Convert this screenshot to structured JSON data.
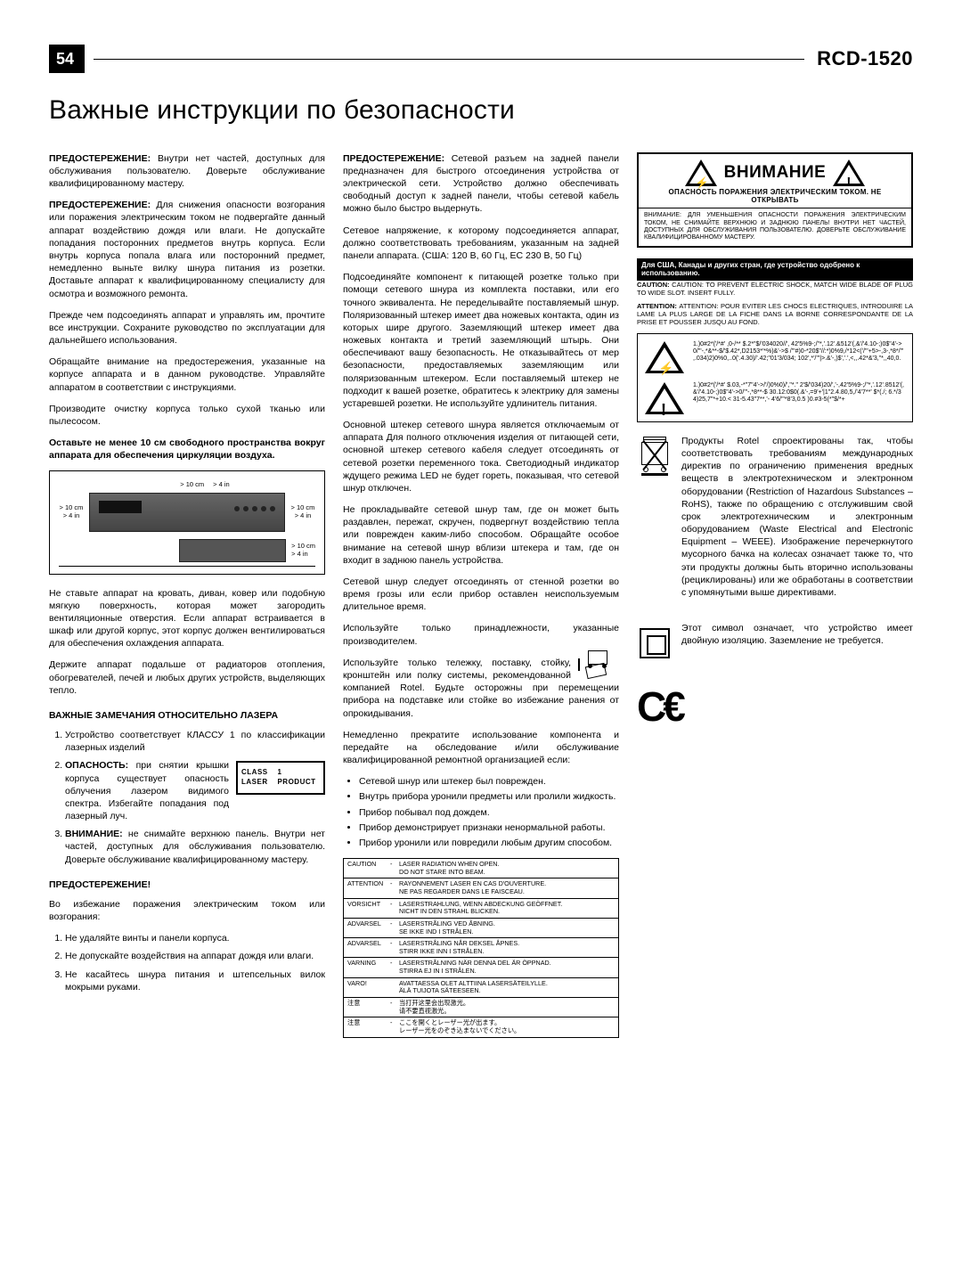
{
  "header": {
    "page": "54",
    "model": "RCD-1520"
  },
  "title": "Важные инструкции по безопасности",
  "col1": {
    "p1_label": "ПРЕДОСТЕРЕЖЕНИЕ:",
    "p1": " Внутри нет частей, доступных для обслуживания пользователю. Доверьте обслуживание квалифицированному мастеру.",
    "p2_label": "ПРЕДОСТЕРЕЖЕНИЕ:",
    "p2": " Для снижения опасности возгорания или поражения электрическим током не подвергайте данный аппарат воздействию дождя или влаги. Не допускайте попадания посторонних предметов внутрь корпуса. Если внутрь корпуса попала влага или посторонний предмет, немедленно выньте вилку шнура питания из розетки. Доставьте аппарат к квалифицированному специалисту для осмотра и возможного ремонта.",
    "p3": "Прежде чем подсоединять аппарат и управлять им, прочтите все инструкции. Сохраните руководство по эксплуатации для дальнейшего использования.",
    "p4": "Обращайте внимание на предостережения, указанные на корпусе аппарата и в данном руководстве. Управляйте аппаратом в соответствии с инструкциями.",
    "p5": "Производите очистку корпуса только сухой тканью или пылесосом.",
    "p6": "Оставьте не менее 10 см свободного пространства вокруг аппарата для обеспечения циркуляции воздуха.",
    "vent": {
      "gt10cm": "> 10 cm",
      "gt4in": "> 4 in"
    },
    "p7": "Не ставьте аппарат на кровать, диван, ковер или подобную мягкую поверхность, которая может загородить вентиляционные отверстия. Если аппарат встраивается в шкаф или другой корпус, этот корпус должен вентилироваться для обеспечения охлаждения аппарата.",
    "p8": "Держите аппарат подальше от радиаторов отопления, обогревателей, печей и любых других устройств, выделяющих тепло.",
    "laser_head": "ВАЖНЫЕ ЗАМЕЧАНИЯ ОТНОСИТЕЛЬНО ЛАЗЕРА",
    "laser1": "Устройство соответствует КЛАССУ 1 по классификации лазерных изделий",
    "laser2_label": "ОПАСНОСТЬ:",
    "laser2": " при снятии крышки корпуса существует опасность облучения лазером видимого спектра. Избегайте попадания под лазерный луч.",
    "laser3_label": "ВНИМАНИЕ:",
    "laser3": " не снимайте верхнюю панель. Внутри нет частей, доступных для обслуживания пользователю. Доверьте обслуживание квалифицированному мастеру.",
    "laser_box": {
      "l1a": "CLASS",
      "l1b": "1",
      "l2a": "LASER",
      "l2b": "PRODUCT"
    },
    "warn_head": "ПРЕДОСТЕРЕЖЕНИЕ!",
    "warn_intro": "Во избежание поражения электрическим током или возгорания:",
    "w1": "Не удаляйте винты и панели корпуса.",
    "w2": "Не допускайте воздействия на аппарат дождя или влаги.",
    "w3": "Не касайтесь шнура питания и штепсельных вилок мокрыми руками."
  },
  "col2": {
    "p1_label": "ПРЕДОСТЕРЕЖЕНИЕ:",
    "p1": " Сетевой разъем на задней панели предназначен для быстрого отсоединения устройства от электрической сети. Устройство должно обеспечивать свободный доступ к задней панели, чтобы сетевой кабель можно было быстро выдернуть.",
    "p2": "Сетевое напряжение, к которому подсоединяется аппарат, должно соответствовать требованиям, указанным на задней панели аппарата. (США: 120 В, 60 Гц, ЕС 230 В, 50 Гц)",
    "p3": "Подсоединяйте компонент к питающей розетке только при помощи сетевого шнура из комплекта поставки, или его точного эквивалента. Не переделывайте поставляемый шнур. Поляризованный штекер имеет два ножевых контакта, один из которых шире другого. Заземляющий штекер имеет два ножевых контакта и третий заземляющий штырь. Они обеспечивают вашу безопасность. Не отказывайтесь от мер безопасности, предоставляемых заземляющим или поляризованным штекером. Если поставляемый штекер не подходит к вашей розетке, обратитесь к электрику для замены устаревшей розетки. Не используйте удлинитель питания.",
    "p4": "Основной штекер сетевого шнура является отключаемым от аппарата Для полного отключения изделия от питающей сети, основной штекер сетевого кабеля следует отсоединять от сетевой розетки переменного тока. Светодиодный индикатор ждущего режима LED не будет гореть, показывая, что сетевой шнур отключен.",
    "p5": "Не прокладывайте сетевой шнур там, где он может быть раздавлен, пережат, скручен, подвергнут воздействию тепла или поврежден каким-либо способом. Обращайте особое внимание на сетевой шнур вблизи штекера и там, где он входит в заднюю панель устройства.",
    "p6": "Сетевой шнур следует отсоединять от стенной розетки во время грозы или если прибор оставлен неиспользуемым длительное время.",
    "p7": "Используйте только принадлежности, указанные производителем.",
    "p8": "Используйте только тележку, поставку, стойку, кронштейн или полку системы, рекомендованной компанией Rotel. Будьте осторожны при перемещении прибора на подставке или стойке во избежание ранения от опрокидывания.",
    "p9": "Немедленно прекратите использование компонента и передайте на обследование и/или обслуживание квалифицированной ремонтной организацией если:",
    "b1": "Сетевой шнур или штекер был поврежден.",
    "b2": "Внутрь прибора уронили предметы или пролили жидкость.",
    "b3": "Прибор побывал под дождем.",
    "b4": "Прибор демонстрирует признаки ненормальной работы.",
    "b5": "Прибор уронили или повредили любым другим способом.",
    "laser_table": [
      {
        "h": "CAUTION",
        "d": "-",
        "t": "LASER RADIATION WHEN OPEN.\nDO NOT STARE INTO BEAM."
      },
      {
        "h": "ATTENTION",
        "d": "-",
        "t": "RAYONNEMENT LASER EN CAS D'OUVERTURE.\nNE PAS REGARDER DANS LE FAISCEAU."
      },
      {
        "h": "VORSICHT",
        "d": "-",
        "t": "LASERSTRAHLUNG, WENN ABDECKUNG GEÖFFNET.\nNICHT IN DEN STRAHL BLICKEN."
      },
      {
        "h": "ADVARSEL",
        "d": "-",
        "t": "LASERSTRÅLING VED ÅBNING.\nSE IKKE IND I STRÅLEN."
      },
      {
        "h": "ADVARSEL",
        "d": "-",
        "t": "LASERSTRÅLING NÅR DEKSEL ÅPNES.\nSTIRR IKKE INN I STRÅLEN."
      },
      {
        "h": "VARNING",
        "d": "-",
        "t": "LASERSTRÅLNING NÄR DENNA DEL ÄR ÖPPNAD.\nSTIRRA EJ IN I STRÅLEN."
      },
      {
        "h": "VARO!",
        "d": "",
        "t": "AVATTAESSA OLET ALTTIINA LASERSÄTEILYLLE.\nÄLÄ TUIJOTA SÄTEESEEN."
      },
      {
        "h": "注意",
        "d": "-",
        "t": "当打开这里会出现激光。\n请不要直视激光。"
      },
      {
        "h": "注意",
        "d": "-",
        "t": "ここを開くとレーザー光が出ます。\nレーザー光をのぞき込まないでください。"
      }
    ]
  },
  "col3": {
    "warn_title": "ВНИМАНИЕ",
    "warn_sub": "ОПАСНОСТЬ ПОРАЖЕНИЯ ЭЛЕКТРИЧЕСКИМ ТОКОМ. НЕ ОТКРЫВАТЬ",
    "warn_bar": "ВНИМАНИЕ: ДЛЯ УМЕНЬШЕНИЯ ОПАСНОСТИ ПОРАЖЕНИЯ ЭЛЕКТРИЧЕСКИМ ТОКОМ, НЕ СНИМАЙТЕ ВЕРХНЮЮ И ЗАДНЮЮ ПАНЕЛЬ! ВНУТРИ НЕТ ЧАСТЕЙ, ДОСТУПНЫХ ДЛЯ ОБСЛУЖИВАНИЯ ПОЛЬЗОВАТЕЛЮ. ДОВЕРЬТЕ ОБСЛУЖИВАНИЕ КВАЛИФИЦИРОВАННОМУ МАСТЕРУ.",
    "black_bar": "Для США, Канады и других стран, где устройство одобрено к использованию.",
    "caution_en": "CAUTION: TO PREVENT ELECTRIC SHOCK, MATCH WIDE BLADE OF PLUG TO WIDE SLOT. INSERT FULLY.",
    "caution_fr": "ATTENTION: POUR EVITER LES CHOCS ELECTRIQUES, INTRODUIRE LA LAME LA PLUS LARGE DE LA FICHE DANS LA BORNE CORRESPONDANTE DE LA PRISE ET POUSSER JUSQU AU FOND.",
    "tri1": "1.)0#2*('/*#' ,0-/** $.2*\"$/'034020//', 42'5%9-;/\"*,'.12'.&512'(,&'/'4.10-;)0$\"4'-> 0/'\"-,*&**-$/'$.42*,D2153*'*%)&'->$ /'\"#)0-*20$\"//:*)0%9,/*12<('/'\"+5>-,3-,*8*/'\" ,.034)2)0%0,..0('.4.30)/'.42;\"01'3/034; 102',*'/'\"|>.&'-,)$','.',<,,.42*&'3,\"*,,40,0.",
    "tri2": "1.)0#2*('/*#' $.03,-*\"7\"4'->/'/)0%0)/',\"*.\" 2'$/'034)20/','-,42'5%9-;/\"*,'.12'.8512'(,&'/'4.10-;)0$\"4'->0/'\"-,*8**-$ 30.12:0$0(.&'-,=9'+'|1\"2.4.80,5,/'4'7**'  $*(./; 6.*/34)25,7\"*+10.< 31-5.43\"7**,'-  4'6/'\"*8'3,0.5 )0.#3-5(*\"$/*+",
    "rohs": "Продукты Rotel спроектированы так, чтобы соответствовать требованиям международных директив по ограничению применения вредных веществ в электротехническом и электронном оборудовании (Restriction of Hazardous Substances – RoHS), также по обращению с отслужившим свой срок электротехническим и электронным оборудованием (Waste Electrical and Electronic Equipment – WEEE). Изображение перечеркнутого мусорного бачка на колесах означает также то, что эти продукты должны быть вторично использованы (рециклированы) или же обработаны в соответствии с упомянутыми выше директивами.",
    "sq": "Этот символ означает, что устройство имеет двойную изоляцию. Заземление не требуется."
  }
}
